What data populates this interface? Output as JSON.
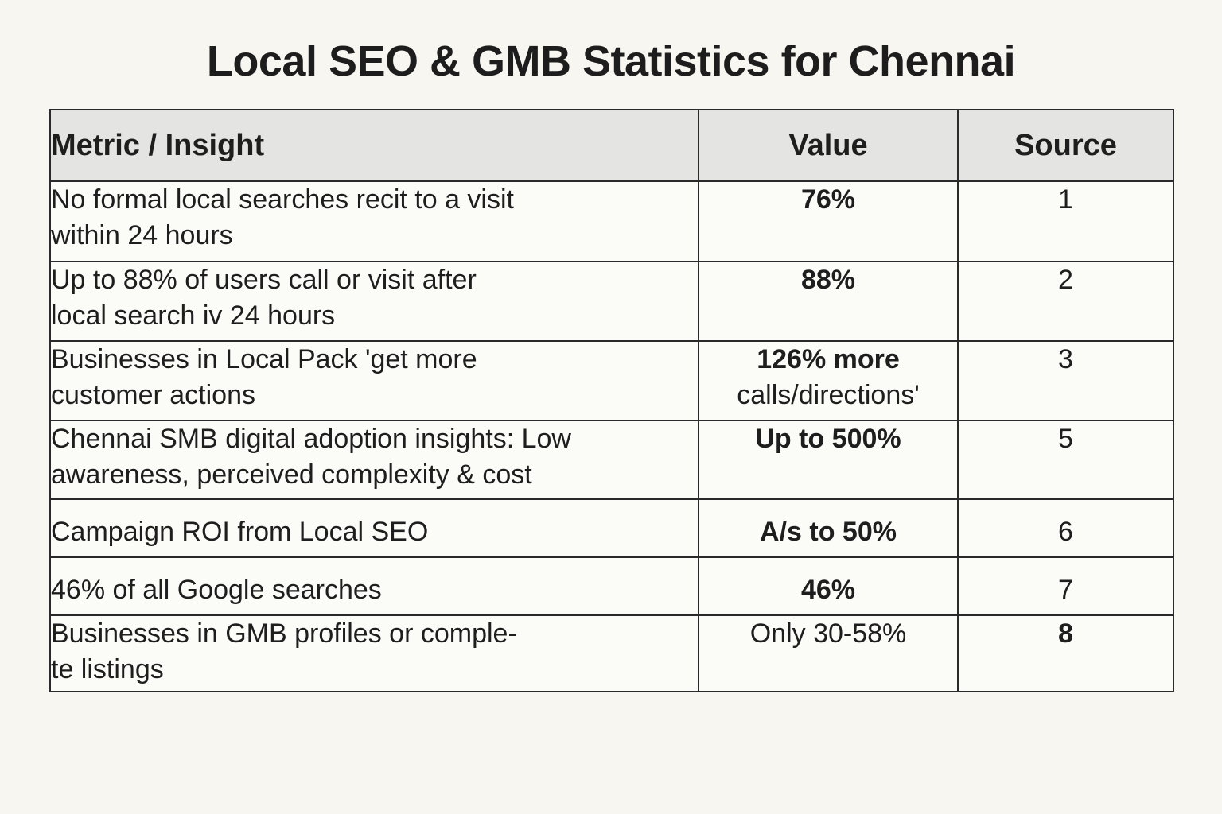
{
  "title": "Local SEO & GMB Statistics for Chennai",
  "table": {
    "headers": {
      "metric": "Metric / Insight",
      "value": "Value",
      "source": "Source"
    },
    "rows": [
      {
        "metric_lines": [
          "No formal local searches recit to a visit",
          "within 24 hours"
        ],
        "value_lines": [
          "76%"
        ],
        "source": "1"
      },
      {
        "metric_lines": [
          "Up to 88% of users call or visit after",
          "local search iv 24 hours"
        ],
        "value_lines": [
          "88%"
        ],
        "source": "2"
      },
      {
        "metric_lines": [
          "Businesses in Local Pack 'get more",
          "customer actions"
        ],
        "value_lines": [
          "126% more",
          "calls/directions'"
        ],
        "source": "3"
      },
      {
        "metric_lines": [
          "Chennai SMB digital adoption insights: Low",
          "awareness, perceived complexity & cost"
        ],
        "value_lines": [
          "Up to 500%"
        ],
        "source": "5"
      },
      {
        "metric_lines": [
          "Campaign ROI from Local SEO"
        ],
        "value_lines": [
          "A/s to 50%"
        ],
        "source": "6"
      },
      {
        "metric_lines": [
          "46% of all Google searches"
        ],
        "value_lines": [
          "46%"
        ],
        "source": "7"
      },
      {
        "metric_lines": [
          "Businesses in GMB profiles or comple-",
          "te listings"
        ],
        "value_lines": [
          "Only 30-58%"
        ],
        "source": "8"
      }
    ]
  }
}
